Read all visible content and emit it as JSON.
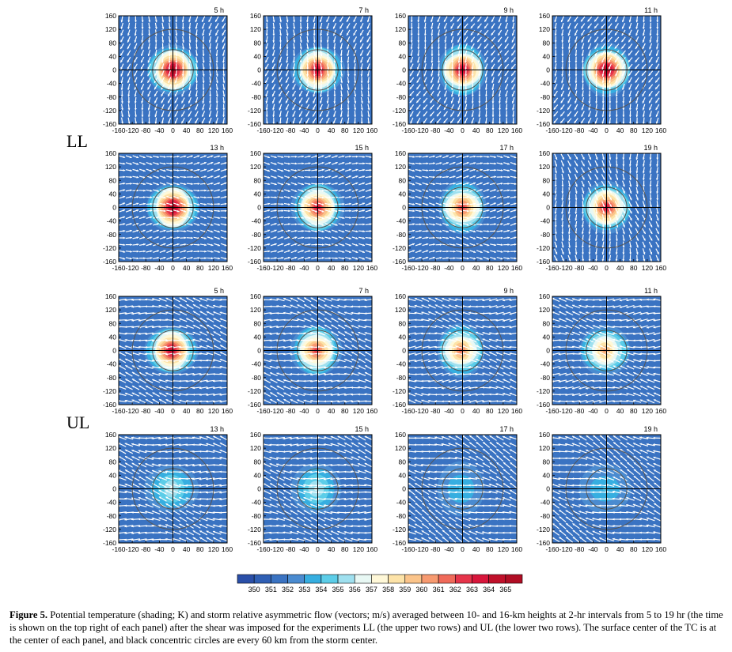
{
  "figure": {
    "groups": [
      "LL",
      "UL"
    ],
    "colorbar": {
      "levels": [
        "350",
        "351",
        "352",
        "353",
        "354",
        "355",
        "356",
        "357",
        "358",
        "359",
        "360",
        "361",
        "362",
        "363",
        "364",
        "365"
      ],
      "colors": [
        "#2a4fa8",
        "#2f5fb4",
        "#3a73c2",
        "#4a8bd0",
        "#36aee0",
        "#5ccde8",
        "#9fe0ef",
        "#e8f8f4",
        "#fff8d8",
        "#fde3a8",
        "#fbc48a",
        "#f79a70",
        "#f06a5a",
        "#e6344a",
        "#d8163b",
        "#c0102a",
        "#b10d24"
      ]
    },
    "caption": {
      "label": "Figure 5.",
      "text": " Potential temperature (shading; K) and storm relative asymmetric flow (vectors; m/s) averaged between 10- and 16-km heights at 2-hr intervals from 5 to 19 hr (the time is shown on the top right of each panel) after the shear was imposed for the experiments LL (the upper two rows) and UL (the lower two rows). The surface center of the TC is at the center of each panel, and black concentric circles are every 60 km from the storm center."
    }
  },
  "chart_data": {
    "type": "heatmap",
    "title": "",
    "xlabel": "",
    "ylabel": "",
    "xlim": [
      -160,
      160
    ],
    "ylim": [
      -160,
      160
    ],
    "xticks": [
      "-160",
      "-120",
      "-80",
      "-40",
      "0",
      "40",
      "80",
      "120",
      "160"
    ],
    "yticks": [
      "160",
      "120",
      "80",
      "40",
      "0",
      "-40",
      "-80",
      "-120",
      "-160"
    ],
    "circle_radii_km": [
      60,
      120
    ],
    "units": "K",
    "panels": [
      {
        "experiment": "LL",
        "time": "5 h",
        "center_max_K": 365,
        "flow_dir_deg": -100,
        "flow_strength": 0.5
      },
      {
        "experiment": "LL",
        "time": "7 h",
        "center_max_K": 364,
        "flow_dir_deg": -100,
        "flow_strength": 0.5
      },
      {
        "experiment": "LL",
        "time": "9 h",
        "center_max_K": 364,
        "flow_dir_deg": -110,
        "flow_strength": 0.5
      },
      {
        "experiment": "LL",
        "time": "11 h",
        "center_max_K": 365,
        "flow_dir_deg": -110,
        "flow_strength": 0.5
      },
      {
        "experiment": "LL",
        "time": "13 h",
        "center_max_K": 365,
        "flow_dir_deg": 0,
        "flow_strength": 0.5
      },
      {
        "experiment": "LL",
        "time": "15 h",
        "center_max_K": 363,
        "flow_dir_deg": 0,
        "flow_strength": 0.5
      },
      {
        "experiment": "LL",
        "time": "17 h",
        "center_max_K": 362,
        "flow_dir_deg": 0,
        "flow_strength": 0.5
      },
      {
        "experiment": "LL",
        "time": "19 h",
        "center_max_K": 363,
        "flow_dir_deg": -80,
        "flow_strength": 0.5
      },
      {
        "experiment": "UL",
        "time": "5 h",
        "center_max_K": 364,
        "flow_dir_deg": 170,
        "flow_strength": 0.9
      },
      {
        "experiment": "UL",
        "time": "7 h",
        "center_max_K": 362,
        "flow_dir_deg": 170,
        "flow_strength": 0.9
      },
      {
        "experiment": "UL",
        "time": "9 h",
        "center_max_K": 361,
        "flow_dir_deg": 175,
        "flow_strength": 0.9
      },
      {
        "experiment": "UL",
        "time": "11 h",
        "center_max_K": 360,
        "flow_dir_deg": 175,
        "flow_strength": 0.9
      },
      {
        "experiment": "UL",
        "time": "13 h",
        "center_max_K": 356,
        "flow_dir_deg": 170,
        "flow_strength": 1.0
      },
      {
        "experiment": "UL",
        "time": "15 h",
        "center_max_K": 356,
        "flow_dir_deg": 170,
        "flow_strength": 1.0
      },
      {
        "experiment": "UL",
        "time": "17 h",
        "center_max_K": 354,
        "flow_dir_deg": 160,
        "flow_strength": 1.0
      },
      {
        "experiment": "UL",
        "time": "19 h",
        "center_max_K": 354,
        "flow_dir_deg": 160,
        "flow_strength": 1.0
      }
    ]
  }
}
